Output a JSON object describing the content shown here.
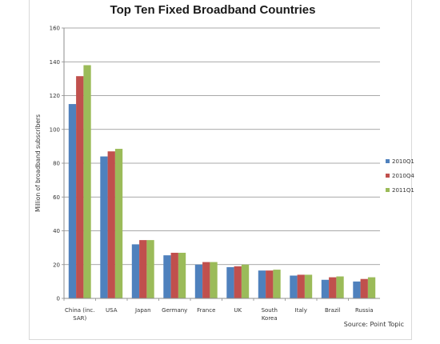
{
  "chart_data": {
    "type": "bar",
    "title": "Top Ten Fixed Broadband Countries",
    "ylabel": "Million of broadband subscribers",
    "xlabel": "",
    "ylim": [
      0,
      160
    ],
    "yticks": [
      0,
      20,
      40,
      60,
      80,
      100,
      120,
      140,
      160
    ],
    "grid": true,
    "legend_position": "right",
    "source": "Source: Point Topic",
    "categories": [
      [
        "China (inc.",
        "SAR)"
      ],
      [
        "USA"
      ],
      [
        "Japan"
      ],
      [
        "Germany"
      ],
      [
        "France"
      ],
      [
        "UK"
      ],
      [
        "South",
        "Korea"
      ],
      [
        "Italy"
      ],
      [
        "Brazil"
      ],
      [
        "Russia"
      ]
    ],
    "series": [
      {
        "name": "2010Q1",
        "color": "#4f81bd",
        "values": [
          115,
          84,
          32,
          25.5,
          20,
          18.5,
          16.5,
          13.5,
          11,
          10
        ]
      },
      {
        "name": "2010Q4",
        "color": "#c0504d",
        "values": [
          131.5,
          87,
          34.5,
          27,
          21.5,
          19,
          16.5,
          14,
          12.5,
          11.5
        ]
      },
      {
        "name": "2011Q1",
        "color": "#9bbb59",
        "values": [
          138,
          88.5,
          34.5,
          27,
          21.5,
          20,
          17,
          14,
          13,
          12.5
        ]
      }
    ]
  }
}
